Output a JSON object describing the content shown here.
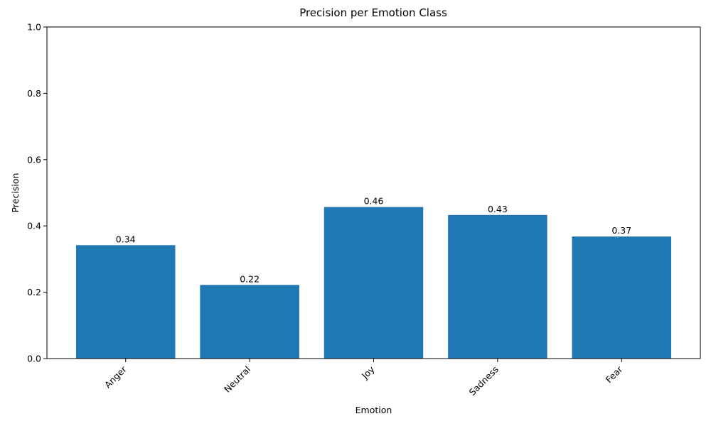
{
  "chart_data": {
    "type": "bar",
    "title": "Precision per Emotion Class",
    "xlabel": "Emotion",
    "ylabel": "Precision",
    "categories": [
      "Anger",
      "Neutral",
      "Joy",
      "Sadness",
      "Fear"
    ],
    "values": [
      0.342,
      0.222,
      0.457,
      0.433,
      0.368
    ],
    "value_labels": [
      "0.34",
      "0.22",
      "0.46",
      "0.43",
      "0.37"
    ],
    "ylim": [
      0,
      1.0
    ],
    "yticks": [
      0.0,
      0.2,
      0.4,
      0.6,
      0.8,
      1.0
    ],
    "ytick_labels": [
      "0.0",
      "0.2",
      "0.4",
      "0.6",
      "0.8",
      "1.0"
    ],
    "grid": false,
    "bar_color": "#1f77b4"
  }
}
